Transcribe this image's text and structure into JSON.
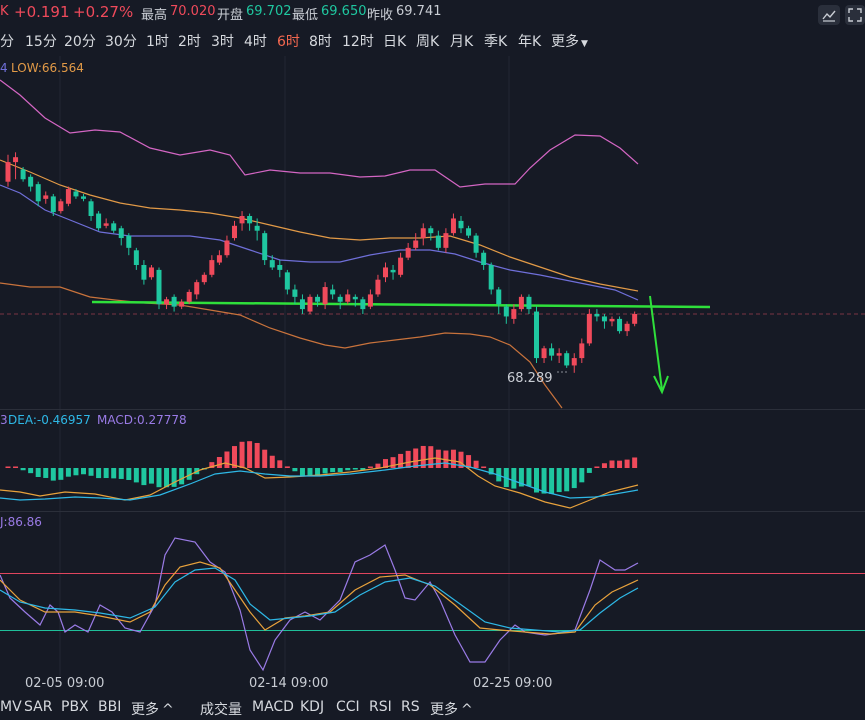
{
  "quote": {
    "prefix": "K",
    "change": "+0.191",
    "change_pct": "+0.27%",
    "high_label": "最高",
    "high_value": "70.020",
    "open_label": "开盘",
    "open_value": "69.702",
    "low_label": "最低",
    "low_value": "69.650",
    "prev_close_label": "昨收",
    "prev_close_value": "69.741",
    "tool_icons": [
      "line-tool-icon",
      "fullscreen-icon"
    ]
  },
  "intervals": {
    "items": [
      "分",
      "15分",
      "20分",
      "30分",
      "1时",
      "2时",
      "3时",
      "4时",
      "6时",
      "8时",
      "12时",
      "日K",
      "周K",
      "月K",
      "季K",
      "年K",
      "更多"
    ],
    "active": "6时"
  },
  "main_chart": {
    "legend_prefix": "4",
    "low_label": "LOW:66.564",
    "min_marker": "68.289",
    "colors": {
      "up": "#f04a5b",
      "down": "#1fc7a0",
      "upper_band": "#d466c4",
      "mid_band": "#6f6fd9",
      "ma": "#e29a47",
      "lower_band": "#c9733c",
      "trendline": "#2fe03b"
    }
  },
  "macd": {
    "prefix": "3",
    "dea_label": "DEA:-0.46957",
    "macd_label": "MACD:0.27778"
  },
  "kdj": {
    "j_label": "J:86.86"
  },
  "x_axis": [
    "02-05 09:00",
    "02-14 09:00",
    "02-25 09:00"
  ],
  "bottom_indicators": {
    "left": [
      "MV",
      "SAR",
      "PBX",
      "BBI",
      "更多"
    ],
    "right": [
      "成交量",
      "MACD",
      "KDJ",
      "CCI",
      "RSI",
      "RS",
      "更多"
    ]
  },
  "chart_data": {
    "type": "candlestick",
    "title": "",
    "x_ticks": [
      "02-05 09:00",
      "02-14 09:00",
      "02-25 09:00"
    ],
    "candles": [
      [
        68.9,
        69.3,
        69.45,
        68.8
      ],
      [
        69.3,
        69.4,
        69.5,
        68.95
      ],
      [
        69.15,
        68.95,
        69.2,
        68.9
      ],
      [
        69.0,
        68.8,
        69.05,
        68.7
      ],
      [
        68.85,
        68.5,
        68.9,
        68.4
      ],
      [
        68.55,
        68.62,
        68.7,
        68.45
      ],
      [
        68.6,
        68.28,
        68.65,
        68.2
      ],
      [
        68.3,
        68.5,
        68.55,
        68.25
      ],
      [
        68.45,
        68.75,
        68.8,
        68.4
      ],
      [
        68.7,
        68.6,
        68.75,
        68.55
      ],
      [
        68.6,
        68.55,
        68.65,
        68.5
      ],
      [
        68.5,
        68.2,
        68.55,
        68.1
      ],
      [
        68.25,
        67.95,
        68.3,
        67.9
      ],
      [
        68.0,
        68.05,
        68.15,
        67.95
      ],
      [
        68.05,
        67.9,
        68.1,
        67.85
      ],
      [
        67.95,
        67.75,
        68.0,
        67.6
      ],
      [
        67.8,
        67.55,
        67.85,
        67.4
      ],
      [
        67.5,
        67.2,
        67.55,
        67.1
      ],
      [
        67.2,
        66.9,
        67.3,
        66.8
      ],
      [
        66.95,
        67.15,
        67.2,
        66.9
      ],
      [
        67.1,
        66.4,
        67.15,
        66.3
      ],
      [
        66.4,
        66.5,
        66.55,
        66.3
      ],
      [
        66.55,
        66.35,
        66.6,
        66.25
      ],
      [
        66.35,
        66.45,
        66.5,
        66.3
      ],
      [
        66.45,
        66.65,
        66.7,
        66.4
      ],
      [
        66.6,
        66.85,
        66.9,
        66.5
      ],
      [
        66.85,
        67.0,
        67.05,
        66.8
      ],
      [
        67.0,
        67.3,
        67.4,
        66.95
      ],
      [
        67.25,
        67.4,
        67.5,
        67.2
      ],
      [
        67.4,
        67.7,
        67.8,
        67.35
      ],
      [
        67.75,
        68.0,
        68.1,
        67.7
      ],
      [
        68.05,
        68.2,
        68.3,
        67.9
      ],
      [
        68.2,
        68.05,
        68.25,
        67.9
      ],
      [
        68.0,
        67.9,
        68.15,
        67.7
      ],
      [
        67.85,
        67.3,
        67.9,
        67.2
      ],
      [
        67.3,
        67.15,
        67.4,
        67.1
      ],
      [
        67.2,
        67.1,
        67.3,
        66.95
      ],
      [
        67.05,
        66.7,
        67.1,
        66.6
      ],
      [
        66.7,
        66.55,
        66.8,
        66.4
      ],
      [
        66.5,
        66.3,
        66.6,
        66.2
      ],
      [
        66.25,
        66.55,
        66.6,
        66.2
      ],
      [
        66.55,
        66.45,
        66.6,
        66.35
      ],
      [
        66.4,
        66.75,
        66.85,
        66.3
      ],
      [
        66.7,
        66.6,
        66.8,
        66.5
      ],
      [
        66.55,
        66.45,
        66.6,
        66.3
      ],
      [
        66.45,
        66.6,
        66.7,
        66.4
      ],
      [
        66.55,
        66.5,
        66.6,
        66.35
      ],
      [
        66.5,
        66.3,
        66.55,
        66.2
      ],
      [
        66.35,
        66.6,
        66.7,
        66.3
      ],
      [
        66.6,
        66.9,
        67.0,
        66.55
      ],
      [
        66.95,
        67.15,
        67.25,
        66.85
      ],
      [
        67.1,
        67.05,
        67.2,
        66.9
      ],
      [
        67.0,
        67.35,
        67.45,
        66.95
      ],
      [
        67.35,
        67.55,
        67.65,
        67.3
      ],
      [
        67.55,
        67.7,
        67.85,
        67.5
      ],
      [
        67.75,
        67.95,
        68.05,
        67.6
      ],
      [
        67.95,
        67.85,
        68.0,
        67.7
      ],
      [
        67.8,
        67.55,
        67.9,
        67.5
      ],
      [
        67.55,
        67.85,
        67.95,
        67.45
      ],
      [
        67.85,
        68.15,
        68.25,
        67.8
      ],
      [
        68.1,
        67.95,
        68.2,
        67.85
      ],
      [
        67.95,
        67.8,
        68.0,
        67.75
      ],
      [
        67.8,
        67.45,
        67.85,
        67.35
      ],
      [
        67.45,
        67.2,
        67.5,
        67.1
      ],
      [
        67.2,
        66.7,
        67.25,
        66.6
      ],
      [
        66.7,
        66.4,
        66.75,
        66.2
      ],
      [
        66.35,
        66.15,
        66.4,
        66.0
      ],
      [
        66.1,
        66.3,
        66.4,
        66.0
      ],
      [
        66.3,
        66.55,
        66.6,
        66.25
      ],
      [
        66.55,
        66.3,
        66.6,
        66.2
      ],
      [
        66.25,
        65.3,
        66.35,
        65.2
      ],
      [
        65.3,
        65.5,
        65.55,
        65.2
      ],
      [
        65.5,
        65.35,
        65.6,
        65.25
      ],
      [
        65.35,
        65.4,
        65.5,
        65.2
      ],
      [
        65.4,
        65.15,
        65.45,
        65.1
      ],
      [
        65.15,
        65.3,
        65.4,
        65.0
      ],
      [
        65.3,
        65.6,
        65.7,
        65.2
      ],
      [
        65.6,
        66.2,
        66.3,
        65.55
      ],
      [
        66.2,
        66.15,
        66.3,
        66.05
      ],
      [
        66.15,
        66.05,
        66.2,
        65.9
      ],
      [
        66.05,
        66.1,
        66.15,
        65.95
      ],
      [
        66.1,
        65.85,
        66.15,
        65.8
      ],
      [
        65.85,
        66.0,
        66.05,
        65.75
      ],
      [
        66.0,
        66.2,
        66.25,
        65.95
      ]
    ]
  }
}
